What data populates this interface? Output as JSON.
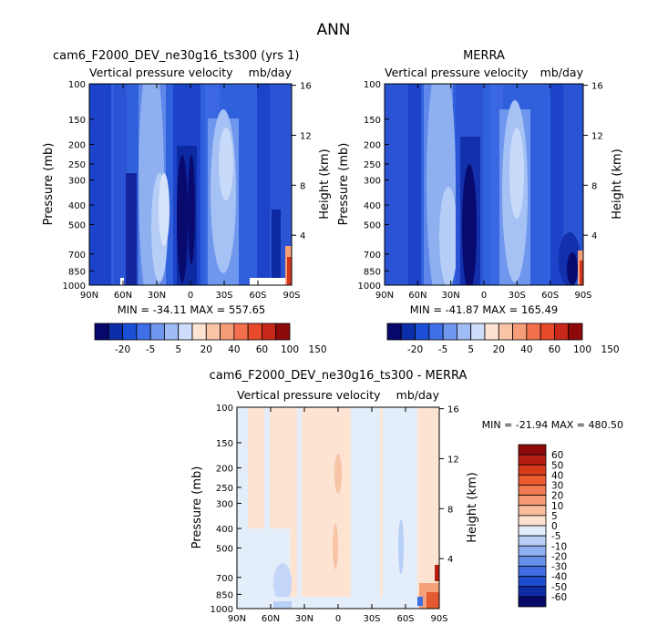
{
  "main_title": "ANN",
  "chart_data": [
    {
      "type": "heatmap",
      "title": "cam6_F2000_DEV_ne30g16_ts300 (yrs 1)",
      "subtitle_left": "Vertical pressure velocity",
      "subtitle_right": "mb/day",
      "ylabel": "Pressure (mb)",
      "ylabel_right": "Height (km)",
      "x_ticks": [
        "90N",
        "60N",
        "30N",
        "0",
        "30S",
        "60S",
        "90S"
      ],
      "y_ticks": [
        100,
        150,
        200,
        250,
        300,
        400,
        500,
        700,
        850,
        1000
      ],
      "height_ticks": [
        4,
        8,
        12,
        16
      ],
      "stats": "MIN = -34.11   MAX = 557.65"
    },
    {
      "type": "heatmap",
      "title": "MERRA",
      "subtitle_left": "Vertical pressure velocity",
      "subtitle_right": "mb/day",
      "ylabel": "Pressure (mb)",
      "ylabel_right": "Height (km)",
      "x_ticks": [
        "90N",
        "60N",
        "30N",
        "0",
        "30S",
        "60S",
        "90S"
      ],
      "y_ticks": [
        100,
        150,
        200,
        250,
        300,
        400,
        500,
        700,
        850,
        1000
      ],
      "height_ticks": [
        4,
        8,
        12,
        16
      ],
      "stats": "MIN = -41.87   MAX = 165.49"
    },
    {
      "type": "heatmap",
      "title": "cam6_F2000_DEV_ne30g16_ts300 - MERRA",
      "subtitle_left": "Vertical pressure velocity",
      "subtitle_right": "mb/day",
      "ylabel": "Pressure (mb)",
      "ylabel_right": "Height (km)",
      "x_ticks": [
        "90N",
        "60N",
        "30N",
        "0",
        "30S",
        "60S",
        "90S"
      ],
      "y_ticks": [
        100,
        150,
        200,
        250,
        300,
        400,
        500,
        700,
        850,
        1000
      ],
      "height_ticks": [
        4,
        8,
        12,
        16
      ],
      "stats": "MIN = -21.94   MAX = 480.50"
    }
  ],
  "colorbar_top": {
    "labels": [
      "-20",
      "-5",
      "5",
      "20",
      "40",
      "60",
      "100",
      "150"
    ],
    "colors": [
      "#08086b",
      "#0c2ea8",
      "#1a4fd6",
      "#3f70e8",
      "#6f97f0",
      "#9fbcf5",
      "#cdddfb",
      "#fde4d2",
      "#fac4a6",
      "#f79c78",
      "#f2704c",
      "#e64a2a",
      "#c8281a",
      "#8e0a0a"
    ]
  },
  "colorbar_diff": {
    "labels": [
      "60",
      "50",
      "40",
      "30",
      "20",
      "10",
      "5",
      "0",
      "-5",
      "-10",
      "-20",
      "-30",
      "-40",
      "-50",
      "-60"
    ],
    "colors": [
      "#8e0a0a",
      "#b81d12",
      "#d83a1c",
      "#ec5a30",
      "#f27a52",
      "#f69b76",
      "#f9bd9d",
      "#fde2cf",
      "#e2ecfb",
      "#b8cff6",
      "#8fb0f2",
      "#6790ed",
      "#3f6ee5",
      "#1f4cd0",
      "#0c2ba5",
      "#07096a"
    ]
  }
}
